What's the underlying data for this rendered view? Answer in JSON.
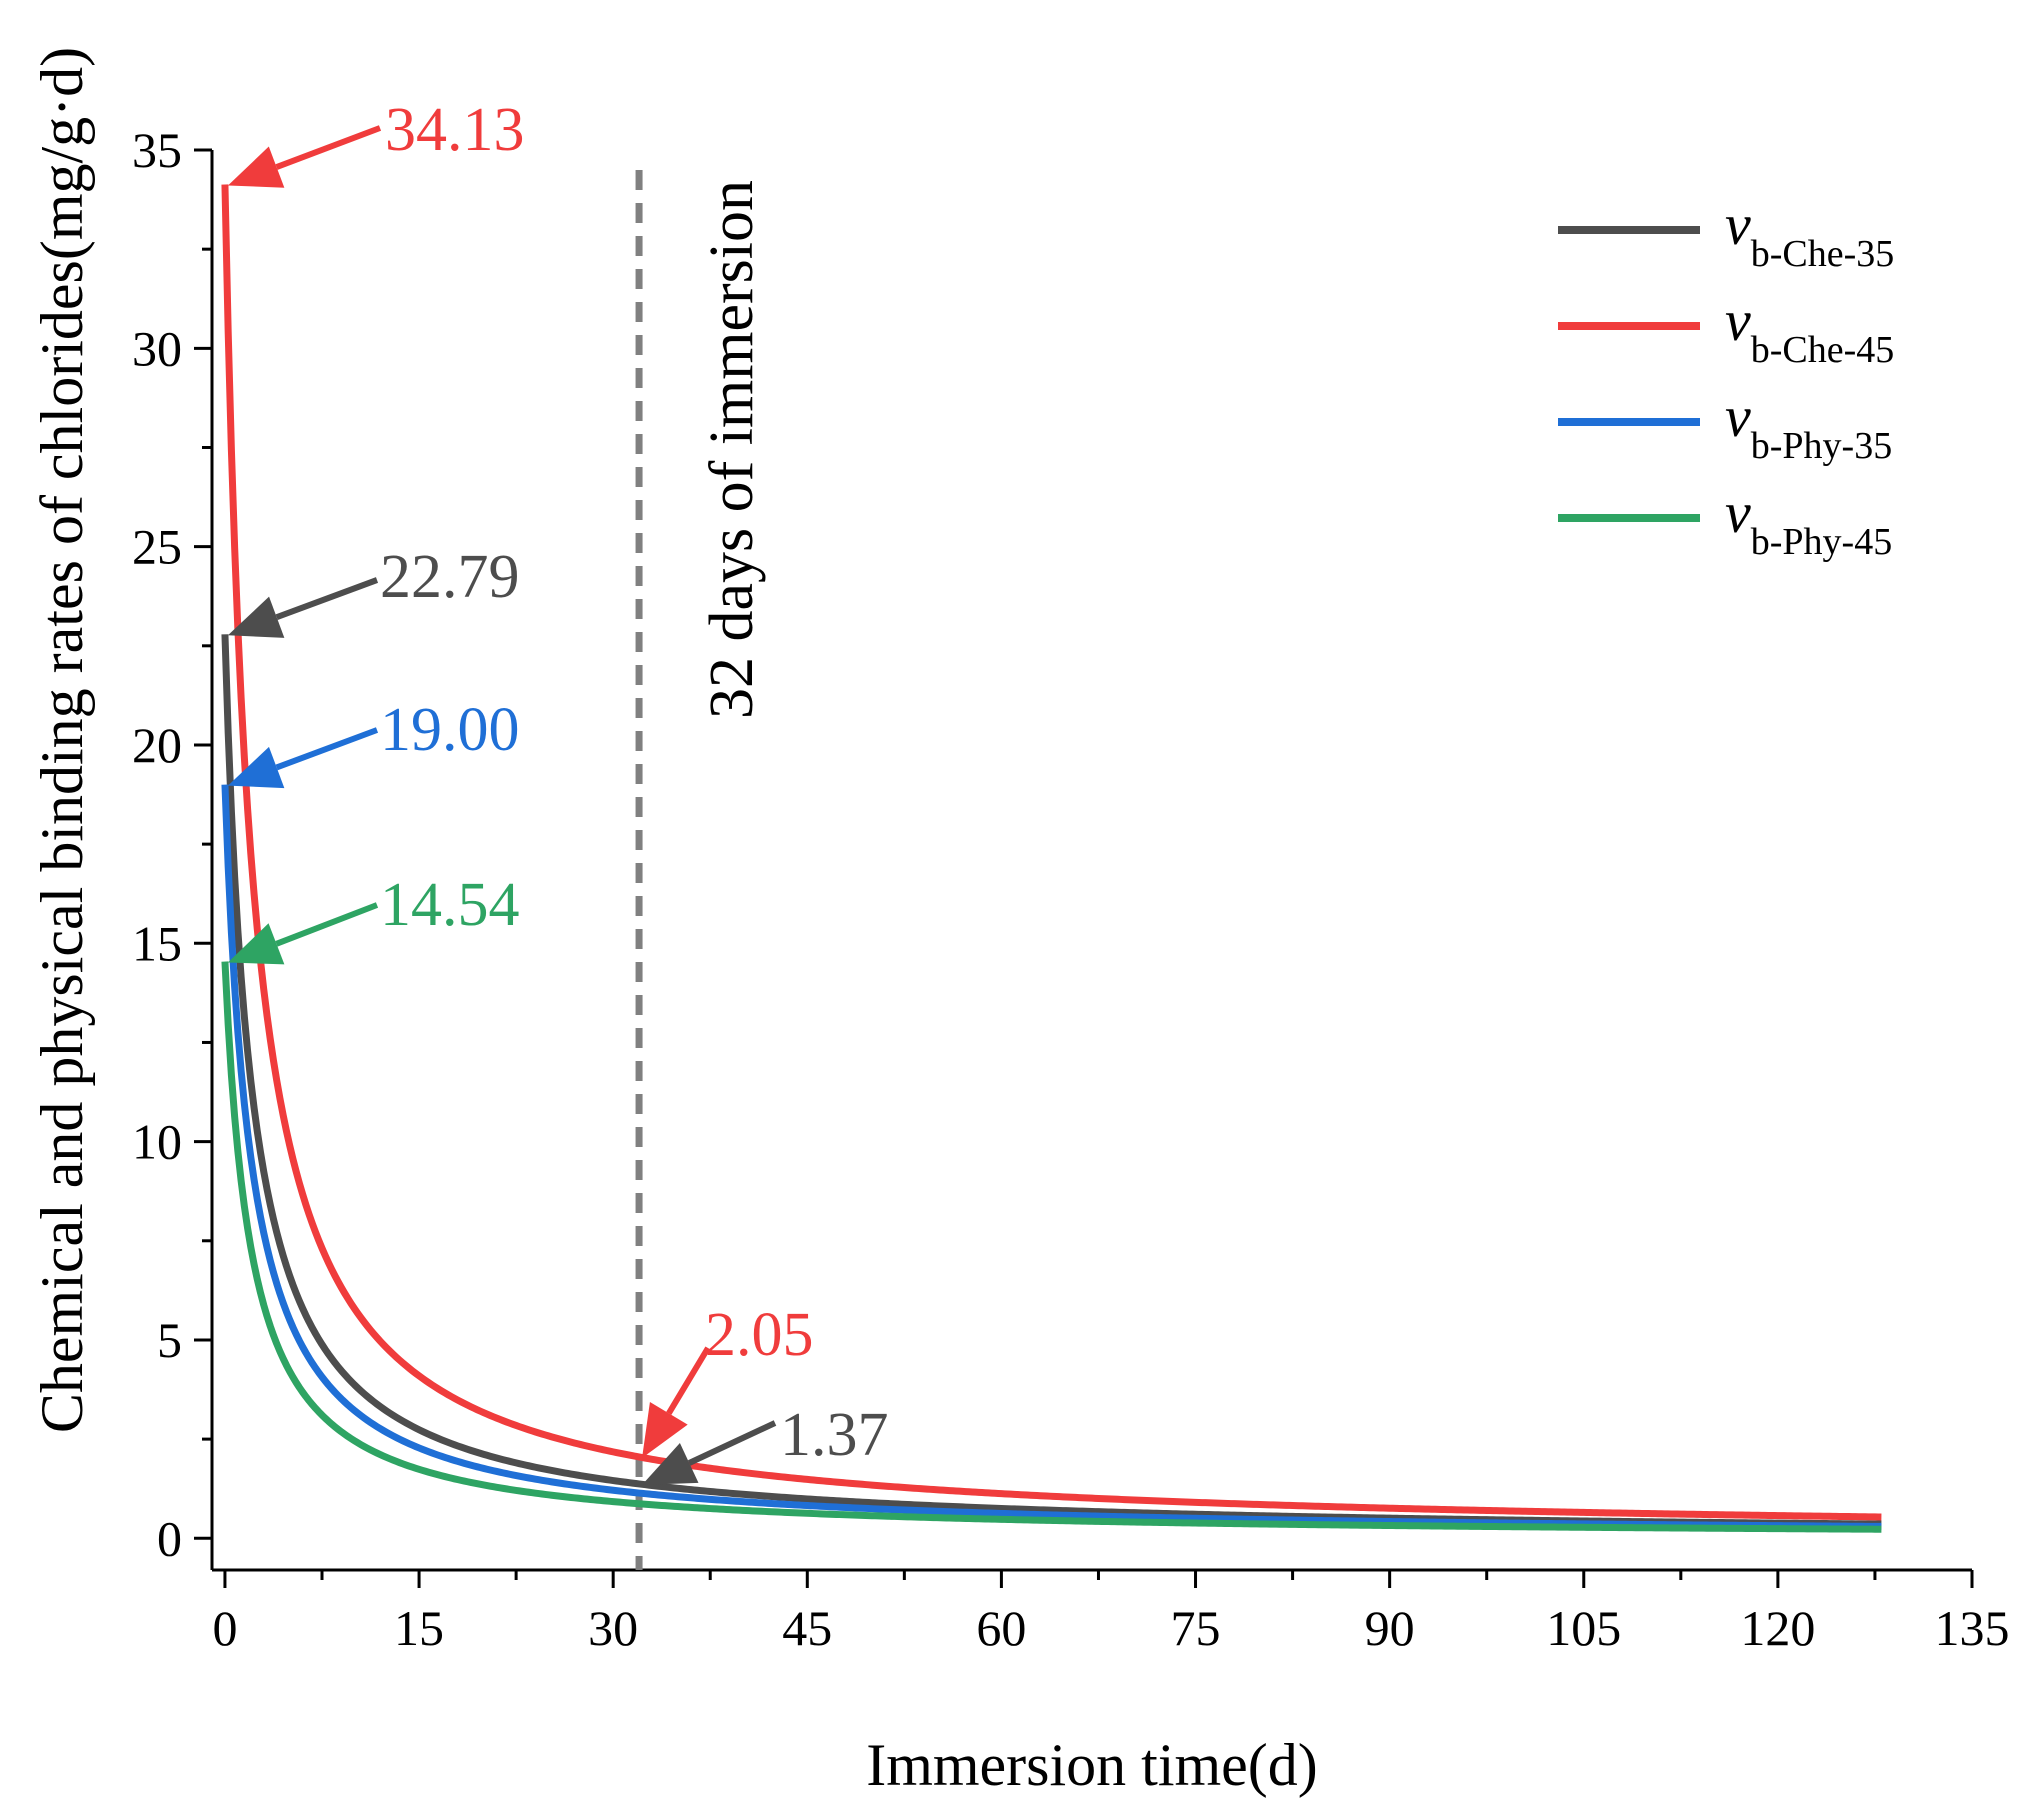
{
  "chart_data": {
    "type": "line",
    "title": "",
    "xlabel": "Immersion time(d)",
    "ylabel": "Chemical and physical binding rates of chlorides(mg/g·d)",
    "xlim": [
      -1,
      135
    ],
    "ylim": [
      -0.8,
      35
    ],
    "xticks": [
      0,
      15,
      30,
      45,
      60,
      75,
      90,
      105,
      120,
      135
    ],
    "yticks": [
      0,
      5,
      10,
      15,
      20,
      25,
      30,
      35
    ],
    "x_range": [
      0,
      128
    ],
    "grid": false,
    "legend_position": "top-right",
    "series": [
      {
        "name": "v",
        "sub": "b-Che-35",
        "color": "#4d4d4d",
        "initial": 22.79,
        "value_at_32": 1.37
      },
      {
        "name": "v",
        "sub": "b-Che-45",
        "color": "#f03c3c",
        "initial": 34.13,
        "value_at_32": 2.05
      },
      {
        "name": "v",
        "sub": "b-Phy-35",
        "color": "#1f6fd6",
        "initial": 19.0,
        "value_at_32": 1.14
      },
      {
        "name": "v",
        "sub": "b-Phy-45",
        "color": "#2ea463",
        "initial": 14.54,
        "value_at_32": 0.87
      }
    ],
    "vline": {
      "x": 32,
      "label": "32 days of immersion",
      "color": "#808080"
    },
    "annotations": [
      {
        "text": "34.13",
        "x": 0,
        "y": 34.13,
        "color": "#f03c3c"
      },
      {
        "text": "22.79",
        "x": 0,
        "y": 22.79,
        "color": "#4d4d4d"
      },
      {
        "text": "19.00",
        "x": 0,
        "y": 19.0,
        "color": "#1f6fd6"
      },
      {
        "text": "14.54",
        "x": 0,
        "y": 14.54,
        "color": "#2ea463"
      },
      {
        "text": "2.05",
        "x": 32,
        "y": 2.05,
        "color": "#f03c3c"
      },
      {
        "text": "1.37",
        "x": 32,
        "y": 1.37,
        "color": "#4d4d4d"
      }
    ]
  }
}
